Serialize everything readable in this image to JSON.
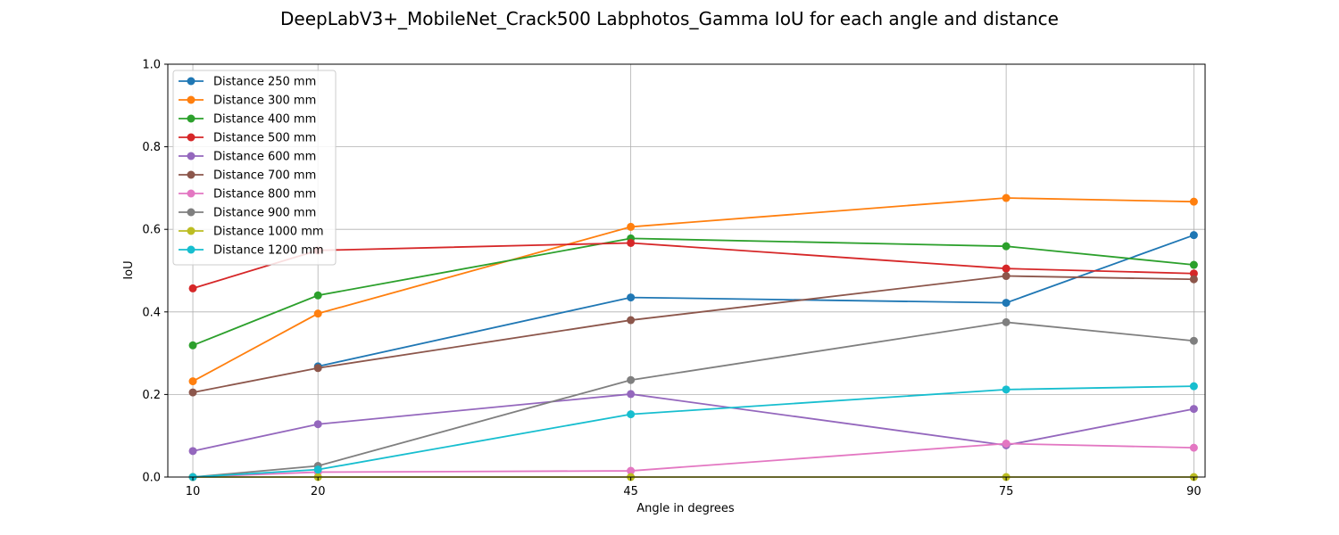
{
  "chart_data": {
    "type": "line",
    "title": "DeepLabV3+_MobileNet_Crack500 Labphotos_Gamma IoU for each angle and distance",
    "xlabel": "Angle in degrees",
    "ylabel": "IoU",
    "x": [
      10,
      20,
      45,
      75,
      90
    ],
    "xlim": [
      8,
      90.9
    ],
    "ylim": [
      0,
      1
    ],
    "yticks": [
      0.0,
      0.2,
      0.4,
      0.6,
      0.8,
      1.0
    ],
    "ytick_labels": [
      "0.0",
      "0.2",
      "0.4",
      "0.6",
      "0.8",
      "1.0"
    ],
    "xtick_labels": [
      "10",
      "20",
      "45",
      "75",
      "90"
    ],
    "grid": true,
    "legend_position": "top-left",
    "series": [
      {
        "name": "Distance 250 mm",
        "color": "#1f77b4",
        "values": [
          null,
          0.268,
          0.435,
          0.422,
          0.586
        ]
      },
      {
        "name": "Distance 300 mm",
        "color": "#ff7f0e",
        "values": [
          0.232,
          0.396,
          0.606,
          0.676,
          0.667
        ]
      },
      {
        "name": "Distance 400 mm",
        "color": "#2ca02c",
        "values": [
          0.319,
          0.44,
          0.578,
          0.559,
          0.514
        ]
      },
      {
        "name": "Distance 500 mm",
        "color": "#d62728",
        "values": [
          0.457,
          0.549,
          0.567,
          0.505,
          0.493
        ]
      },
      {
        "name": "Distance 600 mm",
        "color": "#9467bd",
        "values": [
          0.063,
          0.128,
          0.201,
          0.077,
          0.165
        ]
      },
      {
        "name": "Distance 700 mm",
        "color": "#8c564b",
        "values": [
          0.205,
          0.264,
          0.38,
          0.487,
          0.479
        ]
      },
      {
        "name": "Distance 800 mm",
        "color": "#e377c2",
        "values": [
          0.0,
          0.012,
          0.015,
          0.081,
          0.071
        ]
      },
      {
        "name": "Distance 900 mm",
        "color": "#7f7f7f",
        "values": [
          0.0,
          0.027,
          0.235,
          0.375,
          0.33
        ]
      },
      {
        "name": "Distance 1000 mm",
        "color": "#bcbd22",
        "values": [
          0.0,
          0.0,
          0.0,
          0.0,
          0.0
        ]
      },
      {
        "name": "Distance 1200 mm",
        "color": "#17becf",
        "values": [
          0.0,
          0.018,
          0.152,
          0.212,
          0.22
        ]
      }
    ]
  }
}
